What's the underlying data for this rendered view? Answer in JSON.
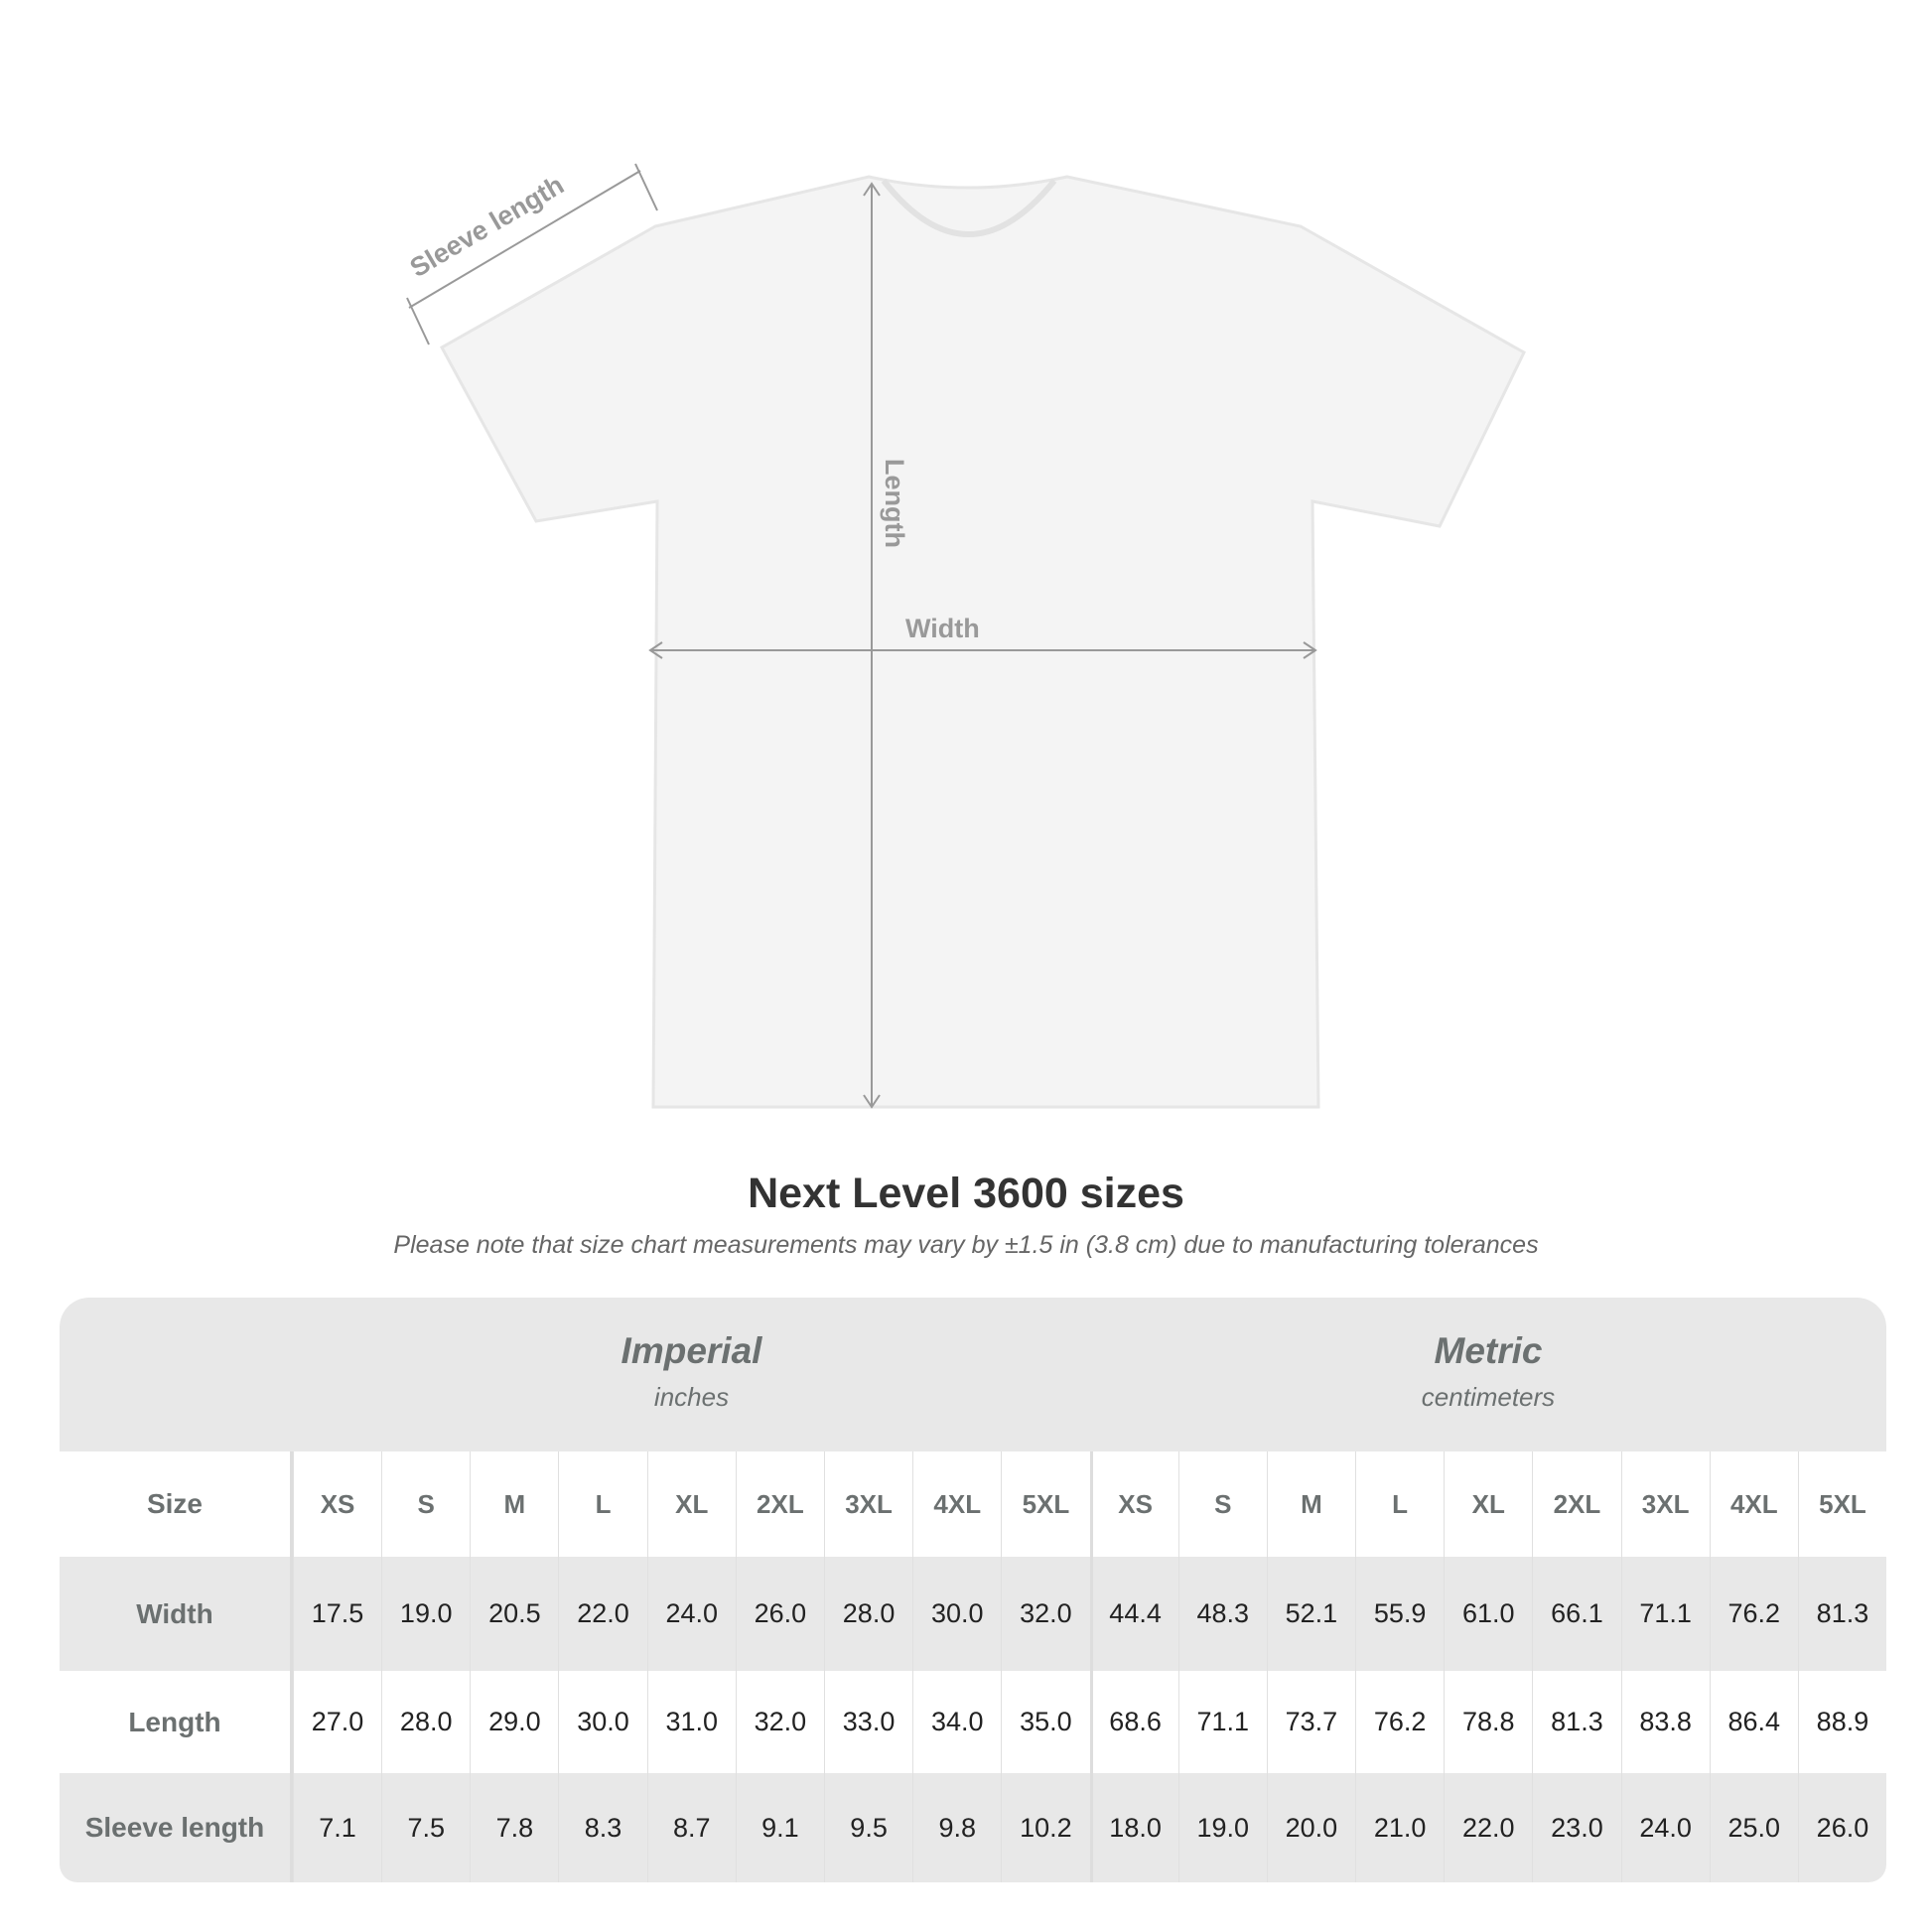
{
  "diagram": {
    "labels": {
      "sleeve": "Sleeve length",
      "length": "Length",
      "width": "Width"
    },
    "colors": {
      "shirt": "#f4f4f4",
      "measure_lines": "#999999"
    }
  },
  "title": "Next Level 3600 sizes",
  "note": "Please note that size chart measurements may vary by ±1.5 in (3.8 cm) due to manufacturing tolerances",
  "table": {
    "imperial": {
      "label": "Imperial",
      "unit": "inches"
    },
    "metric": {
      "label": "Metric",
      "unit": "centimeters"
    },
    "rows": [
      {
        "label": "Size",
        "imperial": [
          "XS",
          "S",
          "M",
          "L",
          "XL",
          "2XL",
          "3XL",
          "4XL",
          "5XL"
        ],
        "metric": [
          "XS",
          "S",
          "M",
          "L",
          "XL",
          "2XL",
          "3XL",
          "4XL",
          "5XL"
        ]
      },
      {
        "label": "Width",
        "imperial": [
          "17.5",
          "19.0",
          "20.5",
          "22.0",
          "24.0",
          "26.0",
          "28.0",
          "30.0",
          "32.0"
        ],
        "metric": [
          "44.4",
          "48.3",
          "52.1",
          "55.9",
          "61.0",
          "66.1",
          "71.1",
          "76.2",
          "81.3"
        ]
      },
      {
        "label": "Length",
        "imperial": [
          "27.0",
          "28.0",
          "29.0",
          "30.0",
          "31.0",
          "32.0",
          "33.0",
          "34.0",
          "35.0"
        ],
        "metric": [
          "68.6",
          "71.1",
          "73.7",
          "76.2",
          "78.8",
          "81.3",
          "83.8",
          "86.4",
          "88.9"
        ]
      },
      {
        "label": "Sleeve length",
        "imperial": [
          "7.1",
          "7.5",
          "7.8",
          "8.3",
          "8.7",
          "9.1",
          "9.5",
          "9.8",
          "10.2"
        ],
        "metric": [
          "18.0",
          "19.0",
          "20.0",
          "21.0",
          "22.0",
          "23.0",
          "24.0",
          "25.0",
          "26.0"
        ]
      }
    ]
  }
}
